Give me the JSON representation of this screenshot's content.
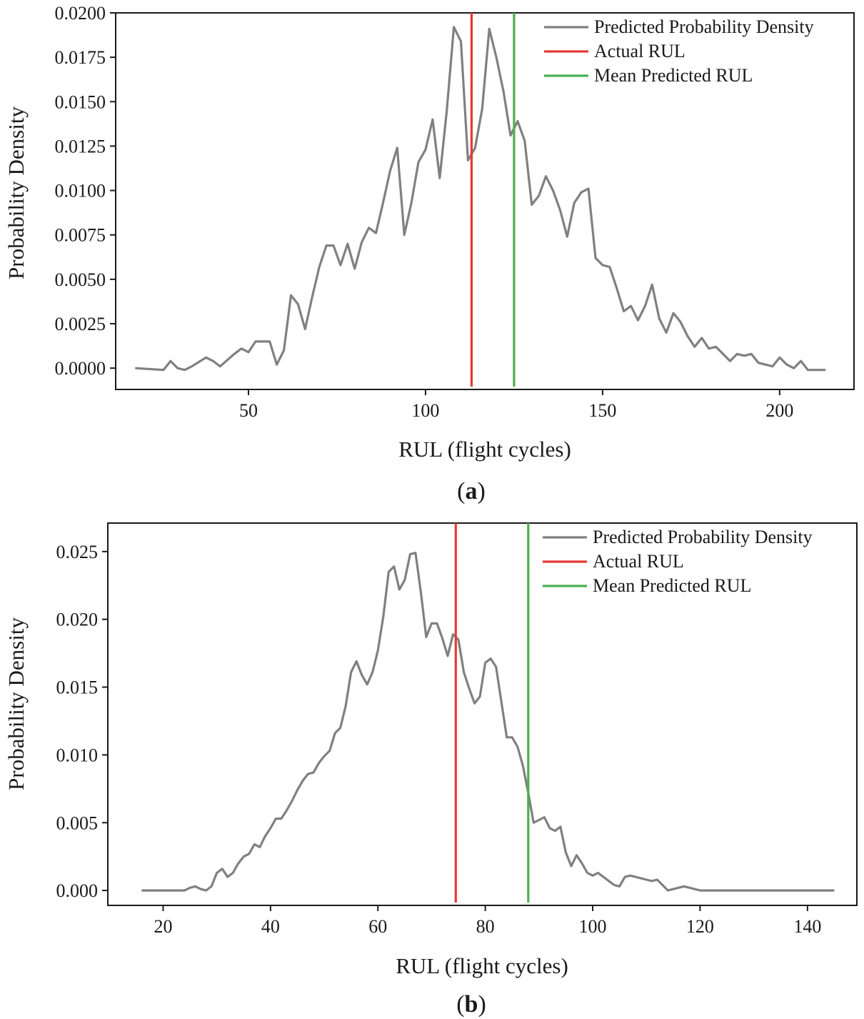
{
  "colors": {
    "density": "#808080",
    "actual": "#e53935",
    "mean": "#4caf50",
    "axis": "#1a1a1a"
  },
  "chart_data": [
    {
      "type": "line",
      "panel_label": "a",
      "xlabel": "RUL (flight cycles)",
      "ylabel": "Probability  Density",
      "xlim": [
        12.5,
        221
      ],
      "ylim": [
        -0.0012,
        0.02
      ],
      "xticks": [
        50,
        100,
        150,
        200
      ],
      "xtick_labels": [
        "50",
        "100",
        "150",
        "200"
      ],
      "yticks": [
        0,
        0.0025,
        0.005,
        0.0075,
        0.01,
        0.0125,
        0.015,
        0.0175,
        0.02
      ],
      "ytick_labels": [
        "0.0000",
        "0.0025",
        "0.0050",
        "0.0075",
        "0.0100",
        "0.0125",
        "0.0150",
        "0.0175",
        "0.0200"
      ],
      "legend_position": "top-right",
      "legend": [
        "Predicted Probability Density",
        "Actual RUL",
        "Mean Predicted RUL"
      ],
      "actual_rul": 113,
      "mean_predicted_rul": 125,
      "series": [
        {
          "name": "Predicted Probability Density",
          "x": [
            18,
            26,
            28,
            30,
            32,
            34,
            38,
            40,
            42,
            46,
            48,
            50,
            52,
            54,
            56,
            58,
            60,
            62,
            64,
            66,
            68,
            70,
            72,
            74,
            76,
            78,
            80,
            82,
            84,
            86,
            88,
            90,
            92,
            94,
            96,
            98,
            100,
            102,
            104,
            106,
            108,
            110,
            112,
            114,
            116,
            118,
            120,
            122,
            124,
            126,
            128,
            130,
            132,
            134,
            136,
            138,
            140,
            142,
            144,
            146,
            148,
            150,
            152,
            154,
            156,
            158,
            160,
            162,
            164,
            166,
            168,
            170,
            172,
            174,
            176,
            178,
            180,
            182,
            184,
            186,
            188,
            190,
            192,
            194,
            196,
            198,
            200,
            202,
            204,
            206,
            208,
            210,
            213
          ],
          "y": [
            0.0,
            -0.0001,
            0.0004,
            0.0,
            -0.0001,
            0.0001,
            0.0006,
            0.0004,
            0.0001,
            0.0008,
            0.0011,
            0.0009,
            0.0015,
            0.0015,
            0.0015,
            0.0002,
            0.001,
            0.0041,
            0.0036,
            0.0022,
            0.004,
            0.0057,
            0.0069,
            0.0069,
            0.0058,
            0.007,
            0.0056,
            0.0071,
            0.0079,
            0.0076,
            0.0093,
            0.0111,
            0.0124,
            0.0075,
            0.0093,
            0.0116,
            0.0123,
            0.014,
            0.0107,
            0.0145,
            0.0192,
            0.0184,
            0.0117,
            0.0124,
            0.0146,
            0.0191,
            0.0175,
            0.0156,
            0.0131,
            0.0139,
            0.0128,
            0.0092,
            0.0097,
            0.0108,
            0.01,
            0.0089,
            0.0074,
            0.0093,
            0.0099,
            0.0101,
            0.0062,
            0.0058,
            0.0057,
            0.0045,
            0.0032,
            0.0035,
            0.0027,
            0.0035,
            0.0047,
            0.0028,
            0.002,
            0.0031,
            0.0026,
            0.0018,
            0.0012,
            0.0017,
            0.0011,
            0.0012,
            0.0008,
            0.0004,
            0.0008,
            0.0007,
            0.0008,
            0.0003,
            0.0002,
            0.0001,
            0.0006,
            0.0002,
            0.0,
            0.0004,
            -0.0001,
            -0.0001,
            -0.0001
          ]
        }
      ]
    },
    {
      "type": "line",
      "panel_label": "b",
      "xlabel": "RUL (flight cycles)",
      "ylabel": "Probability  Density",
      "xlim": [
        9.7,
        149.2
      ],
      "ylim": [
        -0.0011,
        0.0271
      ],
      "xticks": [
        20,
        40,
        60,
        80,
        100,
        120,
        140
      ],
      "xtick_labels": [
        "20",
        "40",
        "60",
        "80",
        "100",
        "120",
        "140"
      ],
      "yticks": [
        0,
        0.005,
        0.01,
        0.015,
        0.02,
        0.025
      ],
      "ytick_labels": [
        "0.000",
        "0.005",
        "0.010",
        "0.015",
        "0.020",
        "0.025"
      ],
      "legend_position": "top-right",
      "legend": [
        "Predicted Probability Density",
        "Actual RUL",
        "Mean Predicted RUL"
      ],
      "actual_rul": 74.5,
      "mean_predicted_rul": 88,
      "series": [
        {
          "name": "Predicted Probability Density",
          "x": [
            16,
            18,
            20,
            22,
            24,
            25,
            26,
            27,
            28,
            29,
            30,
            31,
            32,
            33,
            34,
            35,
            36,
            37,
            38,
            39,
            40,
            41,
            42,
            43,
            44,
            45,
            46,
            47,
            48,
            49,
            50,
            51,
            52,
            53,
            54,
            55,
            56,
            57,
            58,
            59,
            60,
            61,
            62,
            63,
            64,
            65,
            66,
            67,
            68,
            69,
            70,
            71,
            72,
            73,
            74,
            75,
            76,
            77,
            78,
            79,
            80,
            81,
            82,
            83,
            84,
            85,
            86,
            87,
            88,
            89,
            90,
            91,
            92,
            93,
            94,
            95,
            96,
            97,
            98,
            99,
            100,
            101,
            102,
            103,
            104,
            105,
            106,
            107,
            108,
            109,
            110,
            111,
            112,
            113,
            114,
            115,
            116,
            117,
            118,
            119,
            120,
            121,
            122,
            123,
            124,
            125,
            126,
            127,
            128,
            129,
            130,
            131,
            132,
            133,
            134,
            135,
            136,
            137,
            138,
            140,
            142,
            145
          ],
          "y": [
            0.0,
            0.0,
            0.0,
            0.0,
            0.0,
            0.0002,
            0.0003,
            0.0001,
            0.0,
            0.0003,
            0.0013,
            0.0016,
            0.001,
            0.0013,
            0.002,
            0.0025,
            0.0027,
            0.0034,
            0.0032,
            0.004,
            0.0046,
            0.0053,
            0.0053,
            0.0059,
            0.0066,
            0.0074,
            0.0081,
            0.0086,
            0.0087,
            0.0094,
            0.0099,
            0.0103,
            0.0116,
            0.012,
            0.0136,
            0.0161,
            0.0169,
            0.0159,
            0.0152,
            0.0161,
            0.0177,
            0.0202,
            0.0235,
            0.0239,
            0.0222,
            0.0229,
            0.0248,
            0.0249,
            0.022,
            0.0187,
            0.0197,
            0.0197,
            0.0186,
            0.0173,
            0.0189,
            0.0185,
            0.0161,
            0.0149,
            0.0138,
            0.0143,
            0.0168,
            0.0171,
            0.0165,
            0.0139,
            0.0113,
            0.0113,
            0.0106,
            0.0092,
            0.0072,
            0.005,
            0.0052,
            0.0054,
            0.0046,
            0.0044,
            0.0047,
            0.0028,
            0.0018,
            0.0026,
            0.002,
            0.0013,
            0.0011,
            0.0013,
            0.001,
            0.0007,
            0.0004,
            0.0003,
            0.001,
            0.0011,
            0.001,
            0.0009,
            0.0008,
            0.0007,
            0.0008,
            0.0004,
            0.0,
            0.0001,
            0.0002,
            0.0003,
            0.0002,
            0.0001,
            0.0,
            0.0,
            0.0,
            0.0,
            0.0,
            0.0,
            0.0,
            0.0,
            0.0,
            0.0,
            0.0,
            0.0,
            0.0,
            0.0,
            0.0,
            0.0,
            0.0,
            0.0,
            0.0,
            0.0,
            0.0,
            0.0
          ]
        }
      ]
    }
  ]
}
